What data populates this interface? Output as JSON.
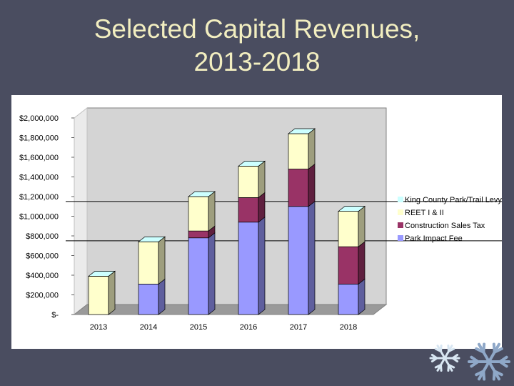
{
  "slide": {
    "title_line1": "Selected Capital Revenues,",
    "title_line2": "2013-2018"
  },
  "colors": {
    "background": "#4a4d60",
    "title": "#f2eec0",
    "King County Park/Trail Levy": "#ccffff",
    "REET I & II": "#ffffcc",
    "Construction Sales Tax": "#993366",
    "Park Impact Fee": "#9999ff"
  },
  "chart_data": {
    "type": "bar",
    "stacked": true,
    "three_d": true,
    "categories": [
      "2013",
      "2014",
      "2015",
      "2016",
      "2017",
      "2018"
    ],
    "series": [
      {
        "name": "Park Impact Fee",
        "color": "#9999ff",
        "values": [
          0,
          310000,
          780000,
          940000,
          1100000,
          310000
        ]
      },
      {
        "name": "Construction Sales Tax",
        "color": "#993366",
        "values": [
          0,
          0,
          70000,
          250000,
          380000,
          380000
        ]
      },
      {
        "name": "REET I & II",
        "color": "#ffffcc",
        "values": [
          390000,
          430000,
          350000,
          320000,
          360000,
          360000
        ]
      },
      {
        "name": "King County Park/Trail Levy",
        "color": "#ccffff",
        "values": [
          0,
          0,
          0,
          0,
          0,
          0
        ]
      }
    ],
    "legend_order": [
      "King County Park/Trail Levy",
      "REET I & II",
      "Construction Sales Tax",
      "Park Impact Fee"
    ],
    "y_ticks": [
      0,
      200000,
      400000,
      600000,
      800000,
      1000000,
      1200000,
      1400000,
      1600000,
      1800000,
      2000000
    ],
    "y_tick_labels": [
      "$-",
      "$200,000",
      "$400,000",
      "$600,000",
      "$800,000",
      "$1,000,000",
      "$1,200,000",
      "$1,400,000",
      "$1,600,000",
      "$1,800,000",
      "$2,000,000"
    ],
    "ylim": [
      0,
      2000000
    ],
    "reference_lines": [
      750000,
      1150000
    ],
    "legend_position": "right",
    "title": "",
    "xlabel": "",
    "ylabel": ""
  }
}
